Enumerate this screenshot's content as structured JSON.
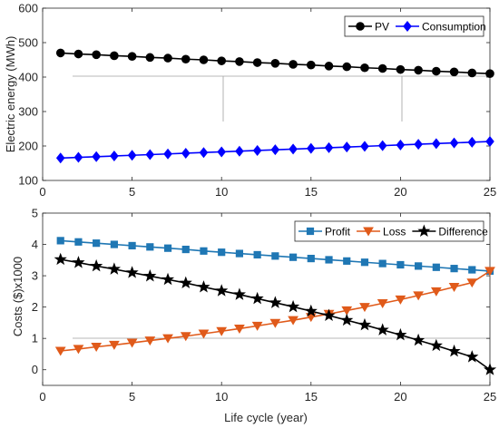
{
  "chart_data": [
    {
      "type": "line",
      "xlabel": "",
      "ylabel": "Electric energy (MWh)",
      "xlim": [
        0,
        25
      ],
      "ylim": [
        100,
        600
      ],
      "xticks": [
        "0",
        "5",
        "10",
        "15",
        "20",
        "25"
      ],
      "yticks": [
        "100",
        "200",
        "300",
        "400",
        "500",
        "600"
      ],
      "legend_position": "top-right",
      "x": [
        1,
        2,
        3,
        4,
        5,
        6,
        7,
        8,
        9,
        10,
        11,
        12,
        13,
        14,
        15,
        16,
        17,
        18,
        19,
        20,
        21,
        22,
        23,
        24,
        25
      ],
      "series": [
        {
          "name": "PV",
          "color": "#000000",
          "marker": "circle",
          "values": [
            470,
            467,
            465,
            462,
            460,
            457,
            455,
            452,
            450,
            447,
            445,
            442,
            440,
            437,
            435,
            432,
            430,
            427,
            425,
            422,
            420,
            417,
            415,
            412,
            410
          ]
        },
        {
          "name": "Consumption",
          "color": "#0000ff",
          "marker": "diamond",
          "values": [
            165,
            167,
            169,
            171,
            173,
            175,
            177,
            179,
            181,
            183,
            185,
            187,
            189,
            191,
            193,
            195,
            197,
            199,
            201,
            203,
            205,
            207,
            209,
            211,
            213
          ]
        }
      ]
    },
    {
      "type": "line",
      "xlabel": "Life cycle (year)",
      "ylabel": "Costs ($)x1000",
      "xlim": [
        0,
        25
      ],
      "ylim": [
        -0.5,
        5
      ],
      "xticks": [
        "0",
        "5",
        "10",
        "15",
        "20",
        "25"
      ],
      "yticks": [
        "0",
        "1",
        "2",
        "3",
        "4",
        "5"
      ],
      "legend_position": "top-right",
      "x": [
        1,
        2,
        3,
        4,
        5,
        6,
        7,
        8,
        9,
        10,
        11,
        12,
        13,
        14,
        15,
        16,
        17,
        18,
        19,
        20,
        21,
        22,
        23,
        24,
        25
      ],
      "series": [
        {
          "name": "Profit",
          "color": "#1f77b4",
          "marker": "square",
          "values": [
            4.12,
            4.08,
            4.04,
            4.0,
            3.96,
            3.92,
            3.88,
            3.84,
            3.79,
            3.75,
            3.71,
            3.67,
            3.63,
            3.59,
            3.55,
            3.51,
            3.47,
            3.43,
            3.39,
            3.35,
            3.31,
            3.27,
            3.23,
            3.19,
            3.15
          ]
        },
        {
          "name": "Loss",
          "color": "#e05a1a",
          "marker": "triangle-down",
          "values": [
            0.6,
            0.66,
            0.73,
            0.79,
            0.86,
            0.93,
            1.0,
            1.07,
            1.15,
            1.23,
            1.31,
            1.4,
            1.49,
            1.58,
            1.68,
            1.78,
            1.89,
            2.0,
            2.12,
            2.24,
            2.37,
            2.5,
            2.64,
            2.78,
            3.15
          ]
        },
        {
          "name": "Difference",
          "color": "#000000",
          "marker": "star",
          "values": [
            3.52,
            3.42,
            3.31,
            3.21,
            3.1,
            2.99,
            2.88,
            2.77,
            2.64,
            2.52,
            2.4,
            2.27,
            2.14,
            2.01,
            1.87,
            1.73,
            1.58,
            1.43,
            1.27,
            1.11,
            0.94,
            0.77,
            0.59,
            0.41,
            0.0
          ]
        }
      ]
    }
  ]
}
